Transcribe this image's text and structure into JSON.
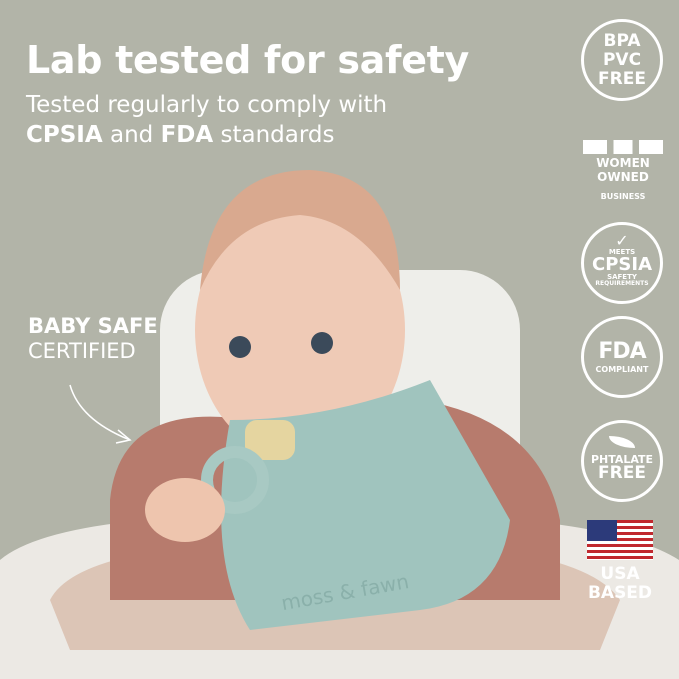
{
  "headline": "Lab tested for safety",
  "subheadline": {
    "line1": "Tested regularly to comply with",
    "brand1": "CPSIA",
    "and": " and ",
    "brand2": "FDA",
    "end": " standards"
  },
  "callout": {
    "line1": "BABY SAFE",
    "line2": "CERTIFIED"
  },
  "badges": {
    "bpa": {
      "l1": "BPA",
      "l2": "PVC",
      "l3": "FREE"
    },
    "women": {
      "l1": "WOMEN",
      "l2": "OWNED",
      "l3": "BUSINESS"
    },
    "cpsia": {
      "l1": "MEETS",
      "l2": "CPSIA",
      "l3": "SAFETY",
      "l4": "REQUIREMENTS"
    },
    "fda": {
      "l1": "FDA",
      "l2": "COMPLIANT"
    },
    "phthalate": {
      "l1": "PHTALATE",
      "l2": "FREE"
    },
    "usa": {
      "l1": "USA",
      "l2": "BASED"
    }
  },
  "bib_brand": "moss & fawn",
  "colors": {
    "background": "#b2b4a8",
    "bib": "#9fc3bd",
    "sweater": "#b87a6c",
    "skin": "#efc9b4",
    "chair": "#f1f1ee",
    "tray": "#dfc8b8"
  }
}
